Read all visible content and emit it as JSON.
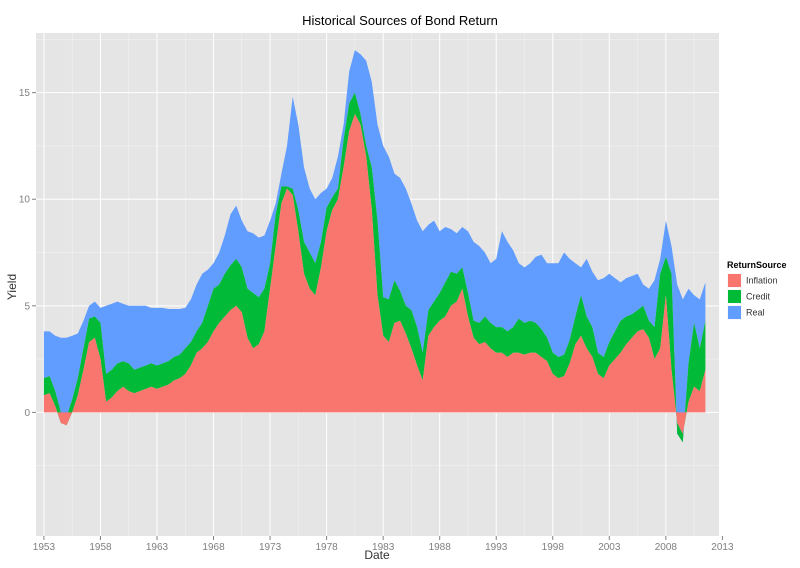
{
  "chart_data": {
    "type": "area",
    "title": "Historical Sources of Bond Return",
    "xlabel": "Date",
    "ylabel": "Yield",
    "x_ticks": [
      "1953",
      "1958",
      "1963",
      "1968",
      "1973",
      "1978",
      "1983",
      "1988",
      "1993",
      "1998",
      "2003",
      "2008",
      "2013"
    ],
    "y_ticks": [
      "0",
      "5",
      "10",
      "15"
    ],
    "xlim": [
      1952.3,
      2012.7
    ],
    "ylim": [
      -5.8,
      17.8
    ],
    "grid": true,
    "legend": {
      "title": "ReturnSource",
      "position": "right"
    },
    "stacked": true,
    "series": [
      {
        "name": "Inflation",
        "color": "#F8766D"
      },
      {
        "name": "Credit",
        "color": "#00BA38"
      },
      {
        "name": "Real",
        "color": "#619CFF"
      }
    ],
    "x": [
      1953.0,
      1953.5,
      1954.0,
      1954.5,
      1955.0,
      1955.5,
      1956.0,
      1956.5,
      1957.0,
      1957.5,
      1958.0,
      1958.5,
      1959.0,
      1959.5,
      1960.0,
      1960.5,
      1961.0,
      1961.5,
      1962.0,
      1962.5,
      1963.0,
      1963.5,
      1964.0,
      1964.5,
      1965.0,
      1965.5,
      1966.0,
      1966.5,
      1967.0,
      1967.5,
      1968.0,
      1968.5,
      1969.0,
      1969.5,
      1970.0,
      1970.5,
      1971.0,
      1971.5,
      1972.0,
      1972.5,
      1973.0,
      1973.5,
      1974.0,
      1974.5,
      1975.0,
      1975.5,
      1976.0,
      1976.5,
      1977.0,
      1977.5,
      1978.0,
      1978.5,
      1979.0,
      1979.5,
      1980.0,
      1980.5,
      1981.0,
      1981.5,
      1982.0,
      1982.5,
      1983.0,
      1983.5,
      1984.0,
      1984.5,
      1985.0,
      1985.5,
      1986.0,
      1986.5,
      1987.0,
      1987.5,
      1988.0,
      1988.5,
      1989.0,
      1989.5,
      1990.0,
      1990.5,
      1991.0,
      1991.5,
      1992.0,
      1992.5,
      1993.0,
      1993.5,
      1994.0,
      1994.5,
      1995.0,
      1995.5,
      1996.0,
      1996.5,
      1997.0,
      1997.5,
      1998.0,
      1998.5,
      1999.0,
      1999.5,
      2000.0,
      2000.5,
      2001.0,
      2001.5,
      2002.0,
      2002.5,
      2003.0,
      2003.5,
      2004.0,
      2004.5,
      2005.0,
      2005.5,
      2006.0,
      2006.5,
      2007.0,
      2007.5,
      2008.0,
      2008.5,
      2009.0,
      2009.5,
      2010.0,
      2010.5,
      2011.0,
      2011.5
    ],
    "inflation_top": [
      0.8,
      0.9,
      0.3,
      -0.5,
      -0.6,
      0.0,
      0.8,
      2.0,
      3.3,
      3.5,
      2.5,
      0.5,
      0.7,
      1.0,
      1.2,
      1.0,
      0.9,
      1.0,
      1.1,
      1.2,
      1.1,
      1.2,
      1.3,
      1.5,
      1.6,
      1.8,
      2.2,
      2.8,
      3.0,
      3.3,
      3.8,
      4.2,
      4.5,
      4.8,
      5.0,
      4.7,
      3.5,
      3.0,
      3.2,
      3.8,
      5.8,
      7.8,
      9.8,
      10.5,
      10.2,
      8.5,
      6.5,
      5.8,
      5.5,
      6.8,
      8.5,
      9.5,
      10.0,
      11.5,
      13.2,
      14.0,
      13.5,
      12.0,
      9.5,
      5.5,
      3.6,
      3.3,
      4.2,
      4.3,
      3.7,
      3.0,
      2.2,
      1.5,
      3.6,
      4.0,
      4.3,
      4.5,
      5.0,
      5.2,
      5.8,
      4.5,
      3.5,
      3.2,
      3.3,
      3.0,
      2.8,
      2.8,
      2.6,
      2.8,
      2.8,
      2.7,
      2.8,
      2.8,
      2.6,
      2.4,
      1.8,
      1.6,
      1.7,
      2.3,
      3.2,
      3.6,
      3.0,
      2.6,
      1.8,
      1.6,
      2.2,
      2.5,
      2.8,
      3.2,
      3.5,
      3.8,
      3.9,
      3.5,
      2.5,
      3.0,
      5.5,
      2.0,
      -0.5,
      -1.0,
      0.5,
      1.2,
      1.0,
      2.0
    ],
    "credit_top": [
      1.6,
      1.7,
      1.0,
      0.0,
      -0.2,
      0.6,
      1.6,
      3.0,
      4.4,
      4.5,
      4.2,
      1.8,
      2.0,
      2.3,
      2.4,
      2.3,
      2.0,
      2.1,
      2.2,
      2.3,
      2.2,
      2.3,
      2.4,
      2.6,
      2.7,
      3.0,
      3.3,
      3.8,
      4.2,
      5.0,
      5.8,
      6.0,
      6.5,
      6.9,
      7.2,
      6.8,
      5.8,
      5.6,
      5.4,
      5.8,
      7.0,
      9.3,
      10.6,
      10.6,
      10.5,
      9.5,
      8.0,
      7.5,
      7.0,
      8.0,
      9.6,
      10.1,
      10.5,
      12.8,
      14.5,
      15.0,
      14.0,
      12.5,
      11.5,
      9.0,
      5.4,
      5.3,
      6.2,
      5.7,
      5.0,
      4.8,
      4.0,
      2.8,
      4.8,
      5.2,
      5.6,
      6.1,
      6.6,
      6.5,
      6.8,
      5.6,
      4.3,
      4.2,
      4.5,
      4.2,
      4.0,
      4.0,
      3.8,
      4.0,
      4.4,
      4.2,
      4.3,
      4.2,
      3.9,
      3.5,
      2.8,
      2.6,
      2.7,
      3.4,
      4.5,
      5.5,
      4.5,
      4.0,
      2.8,
      2.6,
      3.3,
      3.8,
      4.3,
      4.5,
      4.6,
      4.8,
      5.0,
      4.3,
      4.0,
      6.5,
      7.3,
      6.5,
      -1.0,
      -1.4,
      2.3,
      4.2,
      3.0,
      4.3
    ],
    "real_top": [
      3.8,
      3.8,
      3.6,
      3.5,
      3.5,
      3.6,
      3.7,
      4.3,
      5.0,
      5.2,
      4.9,
      5.0,
      5.1,
      5.2,
      5.1,
      5.0,
      5.0,
      5.0,
      5.0,
      4.9,
      4.9,
      4.9,
      4.85,
      4.85,
      4.85,
      4.9,
      5.3,
      6.0,
      6.5,
      6.7,
      7.0,
      7.5,
      8.3,
      9.3,
      9.7,
      9.0,
      8.5,
      8.4,
      8.2,
      8.3,
      9.0,
      9.8,
      11.2,
      12.5,
      14.8,
      13.5,
      11.5,
      10.5,
      10.0,
      10.3,
      10.5,
      11.0,
      12.0,
      13.5,
      16.0,
      17.0,
      16.8,
      16.5,
      15.5,
      13.5,
      12.5,
      12.0,
      11.2,
      11.0,
      10.5,
      9.8,
      9.0,
      8.5,
      8.8,
      9.0,
      8.5,
      8.7,
      8.6,
      8.4,
      8.7,
      8.5,
      8.0,
      7.8,
      7.5,
      7.0,
      7.2,
      8.5,
      8.0,
      7.6,
      7.0,
      6.8,
      7.0,
      7.3,
      7.4,
      7.0,
      7.0,
      7.0,
      7.5,
      7.2,
      7.0,
      6.8,
      7.2,
      6.6,
      6.2,
      6.3,
      6.5,
      6.3,
      6.1,
      6.3,
      6.4,
      6.5,
      6.0,
      5.8,
      6.2,
      7.2,
      9.0,
      7.8,
      6.0,
      5.3,
      5.8,
      5.5,
      5.3,
      6.1
    ]
  }
}
